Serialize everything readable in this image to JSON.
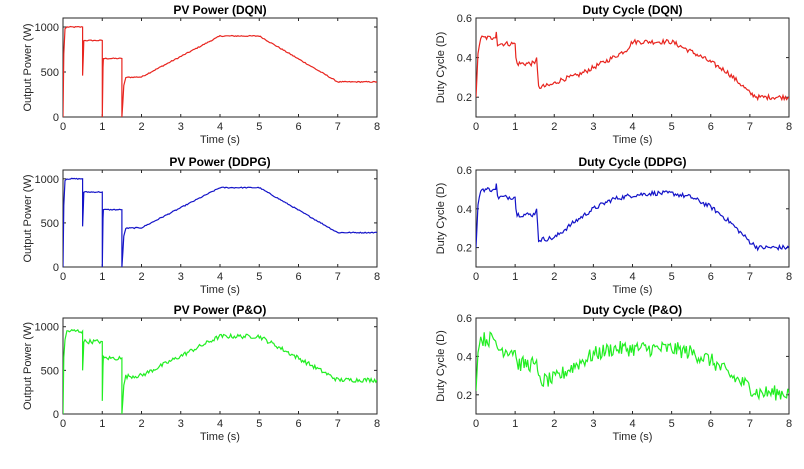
{
  "chart_data": [
    {
      "type": "line",
      "title": "PV Power (DQN)",
      "xlabel": "Time (s)",
      "ylabel": "Output Power (W)",
      "xlim": [
        0,
        8
      ],
      "ylim": [
        0,
        1100
      ],
      "xticks": [
        "0",
        "1",
        "2",
        "3",
        "4",
        "5",
        "6",
        "7",
        "8"
      ],
      "yticks": [
        "0",
        "500",
        "1000"
      ],
      "ytick_values": [
        0,
        500,
        1000
      ],
      "color": "#e8251f",
      "noise": 6,
      "x": [
        0,
        0.02,
        0.05,
        0.1,
        0.5,
        0.5,
        0.52,
        0.53,
        1.0,
        1.0,
        1.02,
        1.03,
        1.5,
        1.5,
        1.55,
        1.6,
        2.0,
        4.0,
        5.0,
        7.0,
        8.0
      ],
      "y": [
        0,
        700,
        980,
        1000,
        1000,
        460,
        700,
        850,
        850,
        0,
        550,
        650,
        650,
        0,
        350,
        440,
        445,
        900,
        900,
        390,
        390
      ]
    },
    {
      "type": "line",
      "title": "Duty Cycle (DQN)",
      "xlabel": "Time (s)",
      "ylabel": "Duty Cycle (D)",
      "xlim": [
        0,
        8
      ],
      "ylim": [
        0.1,
        0.6
      ],
      "xticks": [
        "0",
        "1",
        "2",
        "3",
        "4",
        "5",
        "6",
        "7",
        "8"
      ],
      "yticks": [
        "0.2",
        "0.4",
        "0.6"
      ],
      "ytick_values": [
        0.2,
        0.4,
        0.6
      ],
      "color": "#e8251f",
      "noise": 0.012,
      "x": [
        0,
        0.05,
        0.12,
        0.45,
        0.5,
        0.52,
        0.55,
        1.0,
        1.02,
        1.05,
        1.5,
        1.55,
        1.6,
        1.9,
        2.2,
        2.6,
        3.0,
        3.5,
        3.85,
        4.0,
        4.5,
        5.0,
        5.2,
        5.8,
        6.4,
        6.8,
        7.0,
        7.2,
        8.0
      ],
      "y": [
        0.2,
        0.42,
        0.5,
        0.5,
        0.5,
        0.53,
        0.47,
        0.47,
        0.4,
        0.37,
        0.37,
        0.4,
        0.25,
        0.26,
        0.29,
        0.31,
        0.35,
        0.4,
        0.44,
        0.48,
        0.48,
        0.48,
        0.46,
        0.4,
        0.33,
        0.26,
        0.22,
        0.2,
        0.2
      ]
    },
    {
      "type": "line",
      "title": "PV Power (DDPG)",
      "xlabel": "Time (s)",
      "ylabel": "Output Power (W)",
      "xlim": [
        0,
        8
      ],
      "ylim": [
        0,
        1100
      ],
      "xticks": [
        "0",
        "1",
        "2",
        "3",
        "4",
        "5",
        "6",
        "7",
        "8"
      ],
      "yticks": [
        "0",
        "500",
        "1000"
      ],
      "ytick_values": [
        0,
        500,
        1000
      ],
      "color": "#1414c8",
      "noise": 6,
      "x": [
        0,
        0.02,
        0.05,
        0.1,
        0.5,
        0.5,
        0.52,
        0.53,
        1.0,
        1.0,
        1.02,
        1.03,
        1.5,
        1.5,
        1.55,
        1.6,
        2.0,
        4.0,
        5.0,
        7.0,
        8.0
      ],
      "y": [
        0,
        700,
        980,
        1000,
        1000,
        460,
        700,
        850,
        850,
        0,
        550,
        650,
        650,
        0,
        350,
        440,
        445,
        900,
        900,
        390,
        390
      ]
    },
    {
      "type": "line",
      "title": "Duty Cycle (DDPG)",
      "xlabel": "Time (s)",
      "ylabel": "Duty Cycle (D)",
      "xlim": [
        0,
        8
      ],
      "ylim": [
        0.1,
        0.6
      ],
      "xticks": [
        "0",
        "1",
        "2",
        "3",
        "4",
        "5",
        "6",
        "7",
        "8"
      ],
      "yticks": [
        "0.2",
        "0.4",
        "0.6"
      ],
      "ytick_values": [
        0.2,
        0.4,
        0.6
      ],
      "color": "#1414c8",
      "noise": 0.012,
      "x": [
        0,
        0.05,
        0.12,
        0.45,
        0.5,
        0.52,
        0.55,
        1.0,
        1.02,
        1.05,
        1.5,
        1.55,
        1.6,
        2.0,
        2.5,
        3.0,
        3.5,
        4.0,
        4.5,
        5.0,
        5.5,
        6.0,
        6.5,
        7.0,
        7.2,
        8.0
      ],
      "y": [
        0.2,
        0.42,
        0.5,
        0.5,
        0.5,
        0.53,
        0.46,
        0.46,
        0.4,
        0.37,
        0.37,
        0.4,
        0.24,
        0.25,
        0.33,
        0.4,
        0.45,
        0.47,
        0.48,
        0.48,
        0.46,
        0.41,
        0.33,
        0.23,
        0.2,
        0.2
      ]
    },
    {
      "type": "line",
      "title": "PV Power (P&O)",
      "xlabel": "Time (s)",
      "ylabel": "Output Power (W)",
      "xlim": [
        0,
        8
      ],
      "ylim": [
        0,
        1100
      ],
      "xticks": [
        "0",
        "1",
        "2",
        "3",
        "4",
        "5",
        "6",
        "7",
        "8"
      ],
      "yticks": [
        "0",
        "500",
        "1000"
      ],
      "ytick_values": [
        0,
        500,
        1000
      ],
      "color": "#22ee22",
      "noise": 25,
      "x": [
        0,
        0.02,
        0.05,
        0.1,
        0.5,
        0.5,
        0.52,
        0.53,
        1.0,
        1.0,
        1.02,
        1.03,
        1.5,
        1.5,
        1.55,
        1.6,
        2.0,
        4.0,
        5.0,
        7.0,
        8.0
      ],
      "y": [
        0,
        650,
        850,
        950,
        950,
        500,
        700,
        830,
        830,
        150,
        550,
        640,
        640,
        0,
        330,
        430,
        440,
        890,
        890,
        390,
        390
      ]
    },
    {
      "type": "line",
      "title": "Duty Cycle (P&O)",
      "xlabel": "Time (s)",
      "ylabel": "Duty Cycle (D)",
      "xlim": [
        0,
        8
      ],
      "ylim": [
        0.1,
        0.6
      ],
      "xticks": [
        "0",
        "1",
        "2",
        "3",
        "4",
        "5",
        "6",
        "7",
        "8"
      ],
      "yticks": [
        "0.2",
        "0.4",
        "0.6"
      ],
      "ytick_values": [
        0.2,
        0.4,
        0.6
      ],
      "color": "#22ee22",
      "noise": 0.04,
      "x": [
        0,
        0.05,
        0.12,
        0.45,
        0.5,
        0.55,
        1.0,
        1.05,
        1.5,
        1.55,
        1.6,
        2.0,
        2.5,
        3.0,
        3.5,
        4.0,
        5.0,
        5.5,
        6.0,
        6.5,
        7.0,
        7.2,
        8.0
      ],
      "y": [
        0.22,
        0.42,
        0.49,
        0.49,
        0.48,
        0.44,
        0.43,
        0.36,
        0.36,
        0.38,
        0.27,
        0.28,
        0.35,
        0.41,
        0.44,
        0.44,
        0.44,
        0.42,
        0.38,
        0.3,
        0.24,
        0.21,
        0.21
      ]
    }
  ]
}
